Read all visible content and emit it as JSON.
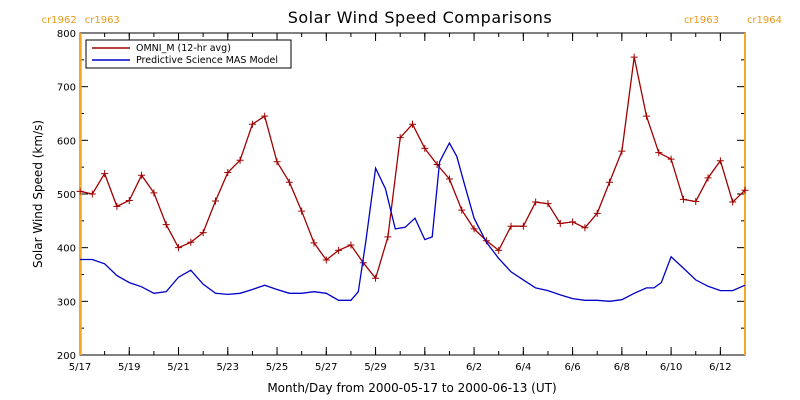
{
  "chart_data": {
    "type": "line",
    "title": "Solar Wind Speed Comparisons",
    "xlabel": "Month/Day from 2000-05-17 to 2000-06-13 (UT)",
    "ylabel": "Solar Wind Speed (km/s)",
    "ylim": [
      200,
      800
    ],
    "yticks": [
      200,
      300,
      400,
      500,
      600,
      700,
      800
    ],
    "xlim_days": [
      0,
      27
    ],
    "xticks": [
      {
        "day": 0,
        "label": "5/17"
      },
      {
        "day": 2,
        "label": "5/19"
      },
      {
        "day": 4,
        "label": "5/21"
      },
      {
        "day": 6,
        "label": "5/23"
      },
      {
        "day": 8,
        "label": "5/25"
      },
      {
        "day": 10,
        "label": "5/27"
      },
      {
        "day": 12,
        "label": "5/29"
      },
      {
        "day": 14,
        "label": "5/31"
      },
      {
        "day": 16,
        "label": "6/2"
      },
      {
        "day": 18,
        "label": "6/4"
      },
      {
        "day": 20,
        "label": "6/6"
      },
      {
        "day": 22,
        "label": "6/8"
      },
      {
        "day": 24,
        "label": "6/10"
      },
      {
        "day": 26,
        "label": "6/12"
      }
    ],
    "legend": {
      "position": "top-left"
    },
    "colors": {
      "omni": "#a00000",
      "model": "#0000c8",
      "carrington": "#f5a623"
    },
    "carrington": [
      {
        "day": 0.03,
        "left": "cr1962",
        "right": "cr1963"
      },
      {
        "day": 27.0,
        "left": "cr1963",
        "right": "cr1964"
      }
    ],
    "series": [
      {
        "name": "OMNI_M (12-hr avg)",
        "style": "line-plus",
        "x": [
          0.0,
          0.5,
          1.0,
          1.5,
          2.0,
          2.5,
          3.0,
          3.5,
          4.0,
          4.5,
          5.0,
          5.5,
          6.0,
          6.5,
          7.0,
          7.5,
          8.0,
          8.5,
          9.0,
          9.5,
          10.0,
          10.5,
          11.0,
          11.5,
          12.0,
          12.5,
          13.0,
          13.5,
          14.0,
          14.5,
          15.0,
          15.5,
          16.0,
          16.5,
          17.0,
          17.5,
          18.0,
          18.5,
          19.0,
          19.5,
          20.0,
          20.5,
          21.0,
          21.5,
          22.0,
          22.5,
          23.0,
          23.5,
          24.0,
          24.5,
          25.0,
          25.5,
          26.0,
          26.5,
          27.0
        ],
        "y": [
          505,
          500,
          538,
          477,
          488,
          535,
          502,
          443,
          400,
          410,
          428,
          487,
          540,
          563,
          630,
          645,
          560,
          522,
          468,
          409,
          377,
          395,
          405,
          372,
          343,
          420,
          605,
          630,
          585,
          555,
          528,
          470,
          435,
          413,
          395,
          440,
          440,
          485,
          482,
          445,
          448,
          437,
          464,
          522,
          580,
          755,
          645,
          577,
          565,
          490,
          486,
          530,
          562,
          485,
          507
        ]
      },
      {
        "name": "Predictive Science MAS Model",
        "style": "line",
        "x": [
          0.0,
          0.5,
          1.0,
          1.5,
          2.0,
          2.5,
          3.0,
          3.5,
          4.0,
          4.5,
          5.0,
          5.5,
          6.0,
          6.5,
          7.0,
          7.5,
          8.0,
          8.5,
          9.0,
          9.5,
          10.0,
          10.5,
          11.0,
          11.3,
          11.6,
          12.0,
          12.4,
          12.8,
          13.2,
          13.6,
          14.0,
          14.3,
          14.6,
          15.0,
          15.3,
          15.6,
          16.0,
          16.5,
          17.0,
          17.5,
          18.0,
          18.5,
          19.0,
          19.5,
          20.0,
          20.5,
          21.0,
          21.5,
          22.0,
          22.5,
          23.0,
          23.3,
          23.6,
          24.0,
          24.5,
          25.0,
          25.5,
          26.0,
          26.5,
          27.0
        ],
        "y": [
          378,
          378,
          370,
          348,
          335,
          327,
          315,
          318,
          345,
          358,
          332,
          315,
          313,
          315,
          322,
          330,
          322,
          315,
          315,
          318,
          315,
          302,
          302,
          318,
          410,
          548,
          510,
          435,
          438,
          455,
          415,
          420,
          560,
          595,
          570,
          520,
          455,
          410,
          380,
          355,
          340,
          325,
          320,
          312,
          305,
          302,
          302,
          300,
          303,
          315,
          325,
          325,
          335,
          383,
          362,
          340,
          328,
          320,
          320,
          330
        ]
      }
    ]
  }
}
